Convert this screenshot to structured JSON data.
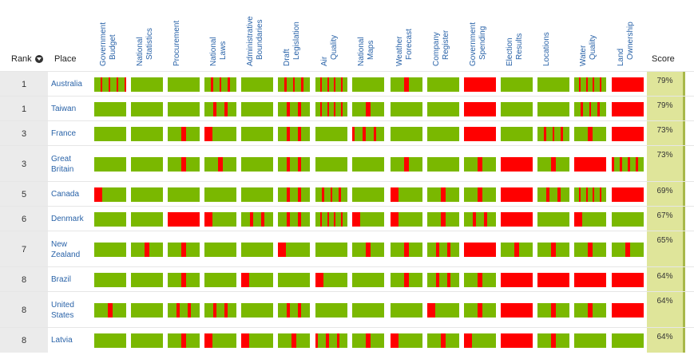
{
  "colors": {
    "green": "#7ab800",
    "red": "#ff0000",
    "score_bg": "#dfe59a"
  },
  "headers": {
    "rank": "Rank",
    "place": "Place",
    "score": "Score",
    "columns": [
      [
        "Government",
        "Budget"
      ],
      [
        "National",
        "Statistics"
      ],
      [
        "Procurement",
        ""
      ],
      [
        "National",
        "Laws"
      ],
      [
        "Administrative",
        "Boundaries"
      ],
      [
        "Draft",
        "Legislation"
      ],
      [
        "Air",
        "Quality"
      ],
      [
        "National",
        "Maps"
      ],
      [
        "Weather",
        "Forecast"
      ],
      [
        "Company",
        "Register"
      ],
      [
        "Government",
        "Spending"
      ],
      [
        "Election",
        "Results"
      ],
      [
        "Locations",
        ""
      ],
      [
        "Water",
        "Quality"
      ],
      [
        "Land",
        "Ownership"
      ]
    ]
  },
  "rows": [
    {
      "rank": "1",
      "place": [
        "Australia"
      ],
      "score": "79%",
      "bars": [
        [
          1,
          0,
          1,
          0,
          1,
          0,
          1,
          0
        ],
        [
          1
        ],
        [
          1
        ],
        [
          1,
          0,
          1,
          0,
          1,
          0,
          1
        ],
        [
          1
        ],
        [
          1,
          0,
          1,
          0,
          1,
          0,
          1
        ],
        [
          1,
          0,
          1,
          0,
          1,
          0,
          1,
          0,
          1
        ],
        [
          1
        ],
        [
          1,
          0,
          1
        ],
        [
          1
        ],
        [
          0
        ],
        [
          1
        ],
        [
          1
        ],
        [
          1,
          0,
          1,
          0,
          1,
          0,
          1,
          0,
          1
        ],
        [
          0
        ]
      ]
    },
    {
      "rank": "1",
      "place": [
        "Taiwan"
      ],
      "score": "79%",
      "bars": [
        [
          1
        ],
        [
          1
        ],
        [
          1
        ],
        [
          1,
          0,
          1,
          0,
          1
        ],
        [
          1
        ],
        [
          1,
          0,
          1,
          0,
          1
        ],
        [
          1,
          0,
          1,
          0,
          1,
          0,
          1,
          0,
          1
        ],
        [
          1,
          0,
          1
        ],
        [
          1
        ],
        [
          1
        ],
        [
          0
        ],
        [
          1
        ],
        [
          1
        ],
        [
          1,
          0,
          1,
          0,
          1,
          0,
          1
        ],
        [
          0
        ]
      ]
    },
    {
      "rank": "3",
      "place": [
        "France"
      ],
      "score": "73%",
      "bars": [
        [
          1
        ],
        [
          1
        ],
        [
          1,
          0,
          1
        ],
        [
          0,
          1
        ],
        [
          1
        ],
        [
          1,
          0,
          1,
          0,
          1
        ],
        [
          1
        ],
        [
          0,
          1,
          0,
          1,
          0,
          1
        ],
        [
          1
        ],
        [
          1
        ],
        [
          0
        ],
        [
          1
        ],
        [
          1,
          0,
          1,
          0,
          1,
          0,
          1
        ],
        [
          1,
          0,
          1
        ],
        [
          0
        ]
      ]
    },
    {
      "rank": "3",
      "place": [
        "Great",
        "Britain"
      ],
      "score": "73%",
      "bars": [
        [
          1
        ],
        [
          1
        ],
        [
          1,
          0,
          1
        ],
        [
          1,
          0,
          1
        ],
        [
          1
        ],
        [
          1,
          0,
          1,
          0,
          1
        ],
        [
          1
        ],
        [
          1
        ],
        [
          1,
          0,
          1
        ],
        [
          1
        ],
        [
          1,
          0,
          1
        ],
        [
          0
        ],
        [
          1,
          0,
          1
        ],
        [
          0
        ],
        [
          0,
          1,
          0,
          1,
          0,
          1,
          0,
          1
        ]
      ]
    },
    {
      "rank": "5",
      "place": [
        "Canada"
      ],
      "score": "69%",
      "bars": [
        [
          0,
          1
        ],
        [
          1
        ],
        [
          1
        ],
        [
          1
        ],
        [
          1
        ],
        [
          1,
          0,
          1,
          0,
          1
        ],
        [
          1,
          0,
          1,
          0,
          1,
          0,
          1
        ],
        [
          1
        ],
        [
          0,
          1
        ],
        [
          1,
          0,
          1
        ],
        [
          1,
          0,
          1
        ],
        [
          0
        ],
        [
          1,
          0,
          1,
          0,
          1
        ],
        [
          1,
          0,
          1,
          0,
          1,
          0,
          1,
          0,
          1
        ],
        [
          0
        ]
      ]
    },
    {
      "rank": "6",
      "place": [
        "Denmark"
      ],
      "score": "67%",
      "bars": [
        [
          1
        ],
        [
          1
        ],
        [
          0
        ],
        [
          0,
          1
        ],
        [
          1,
          0,
          1,
          0,
          1
        ],
        [
          1,
          0,
          1,
          0,
          1
        ],
        [
          1,
          0,
          1,
          0,
          1,
          0,
          1,
          0,
          1
        ],
        [
          0,
          1
        ],
        [
          0,
          1
        ],
        [
          1,
          0,
          1
        ],
        [
          1,
          0,
          1,
          0,
          1
        ],
        [
          0
        ],
        [
          1
        ],
        [
          0,
          1
        ],
        [
          1
        ]
      ]
    },
    {
      "rank": "7",
      "place": [
        "New",
        "Zealand"
      ],
      "score": "65%",
      "bars": [
        [
          1
        ],
        [
          1,
          0,
          1
        ],
        [
          1,
          0,
          1
        ],
        [
          1
        ],
        [
          1
        ],
        [
          0,
          1
        ],
        [
          1
        ],
        [
          1,
          0,
          1
        ],
        [
          1,
          0,
          1
        ],
        [
          1,
          0,
          1,
          0,
          1
        ],
        [
          0
        ],
        [
          1,
          0,
          1
        ],
        [
          1,
          0,
          1
        ],
        [
          1,
          0,
          1
        ],
        [
          1,
          0,
          1
        ]
      ]
    },
    {
      "rank": "8",
      "place": [
        "Brazil"
      ],
      "score": "64%",
      "bars": [
        [
          1
        ],
        [
          1
        ],
        [
          1,
          0,
          1
        ],
        [
          1
        ],
        [
          0,
          1
        ],
        [
          1
        ],
        [
          0,
          1
        ],
        [
          1
        ],
        [
          1,
          0,
          1
        ],
        [
          1,
          0,
          1,
          0,
          1
        ],
        [
          1,
          0,
          1
        ],
        [
          0
        ],
        [
          0
        ],
        [
          0
        ],
        [
          0
        ]
      ]
    },
    {
      "rank": "8",
      "place": [
        "United",
        "States"
      ],
      "score": "64%",
      "bars": [
        [
          1,
          0,
          1
        ],
        [
          1
        ],
        [
          1,
          0,
          1,
          0,
          1
        ],
        [
          1,
          0,
          1,
          0,
          1
        ],
        [
          1
        ],
        [
          1,
          0,
          1,
          0,
          1
        ],
        [
          1
        ],
        [
          1
        ],
        [
          1
        ],
        [
          0,
          1
        ],
        [
          1,
          0,
          1
        ],
        [
          0
        ],
        [
          1,
          0,
          1
        ],
        [
          1,
          0,
          1
        ],
        [
          0
        ]
      ]
    },
    {
      "rank": "8",
      "place": [
        "Latvia"
      ],
      "score": "64%",
      "bars": [
        [
          1
        ],
        [
          1
        ],
        [
          1,
          0,
          1
        ],
        [
          0,
          1
        ],
        [
          0,
          1
        ],
        [
          1,
          0,
          1
        ],
        [
          0,
          1,
          0,
          1,
          0,
          1
        ],
        [
          1,
          0,
          1
        ],
        [
          0,
          1
        ],
        [
          1,
          0,
          1
        ],
        [
          0,
          1
        ],
        [
          0
        ],
        [
          1,
          0,
          1
        ],
        [
          1
        ],
        [
          1
        ]
      ]
    }
  ]
}
